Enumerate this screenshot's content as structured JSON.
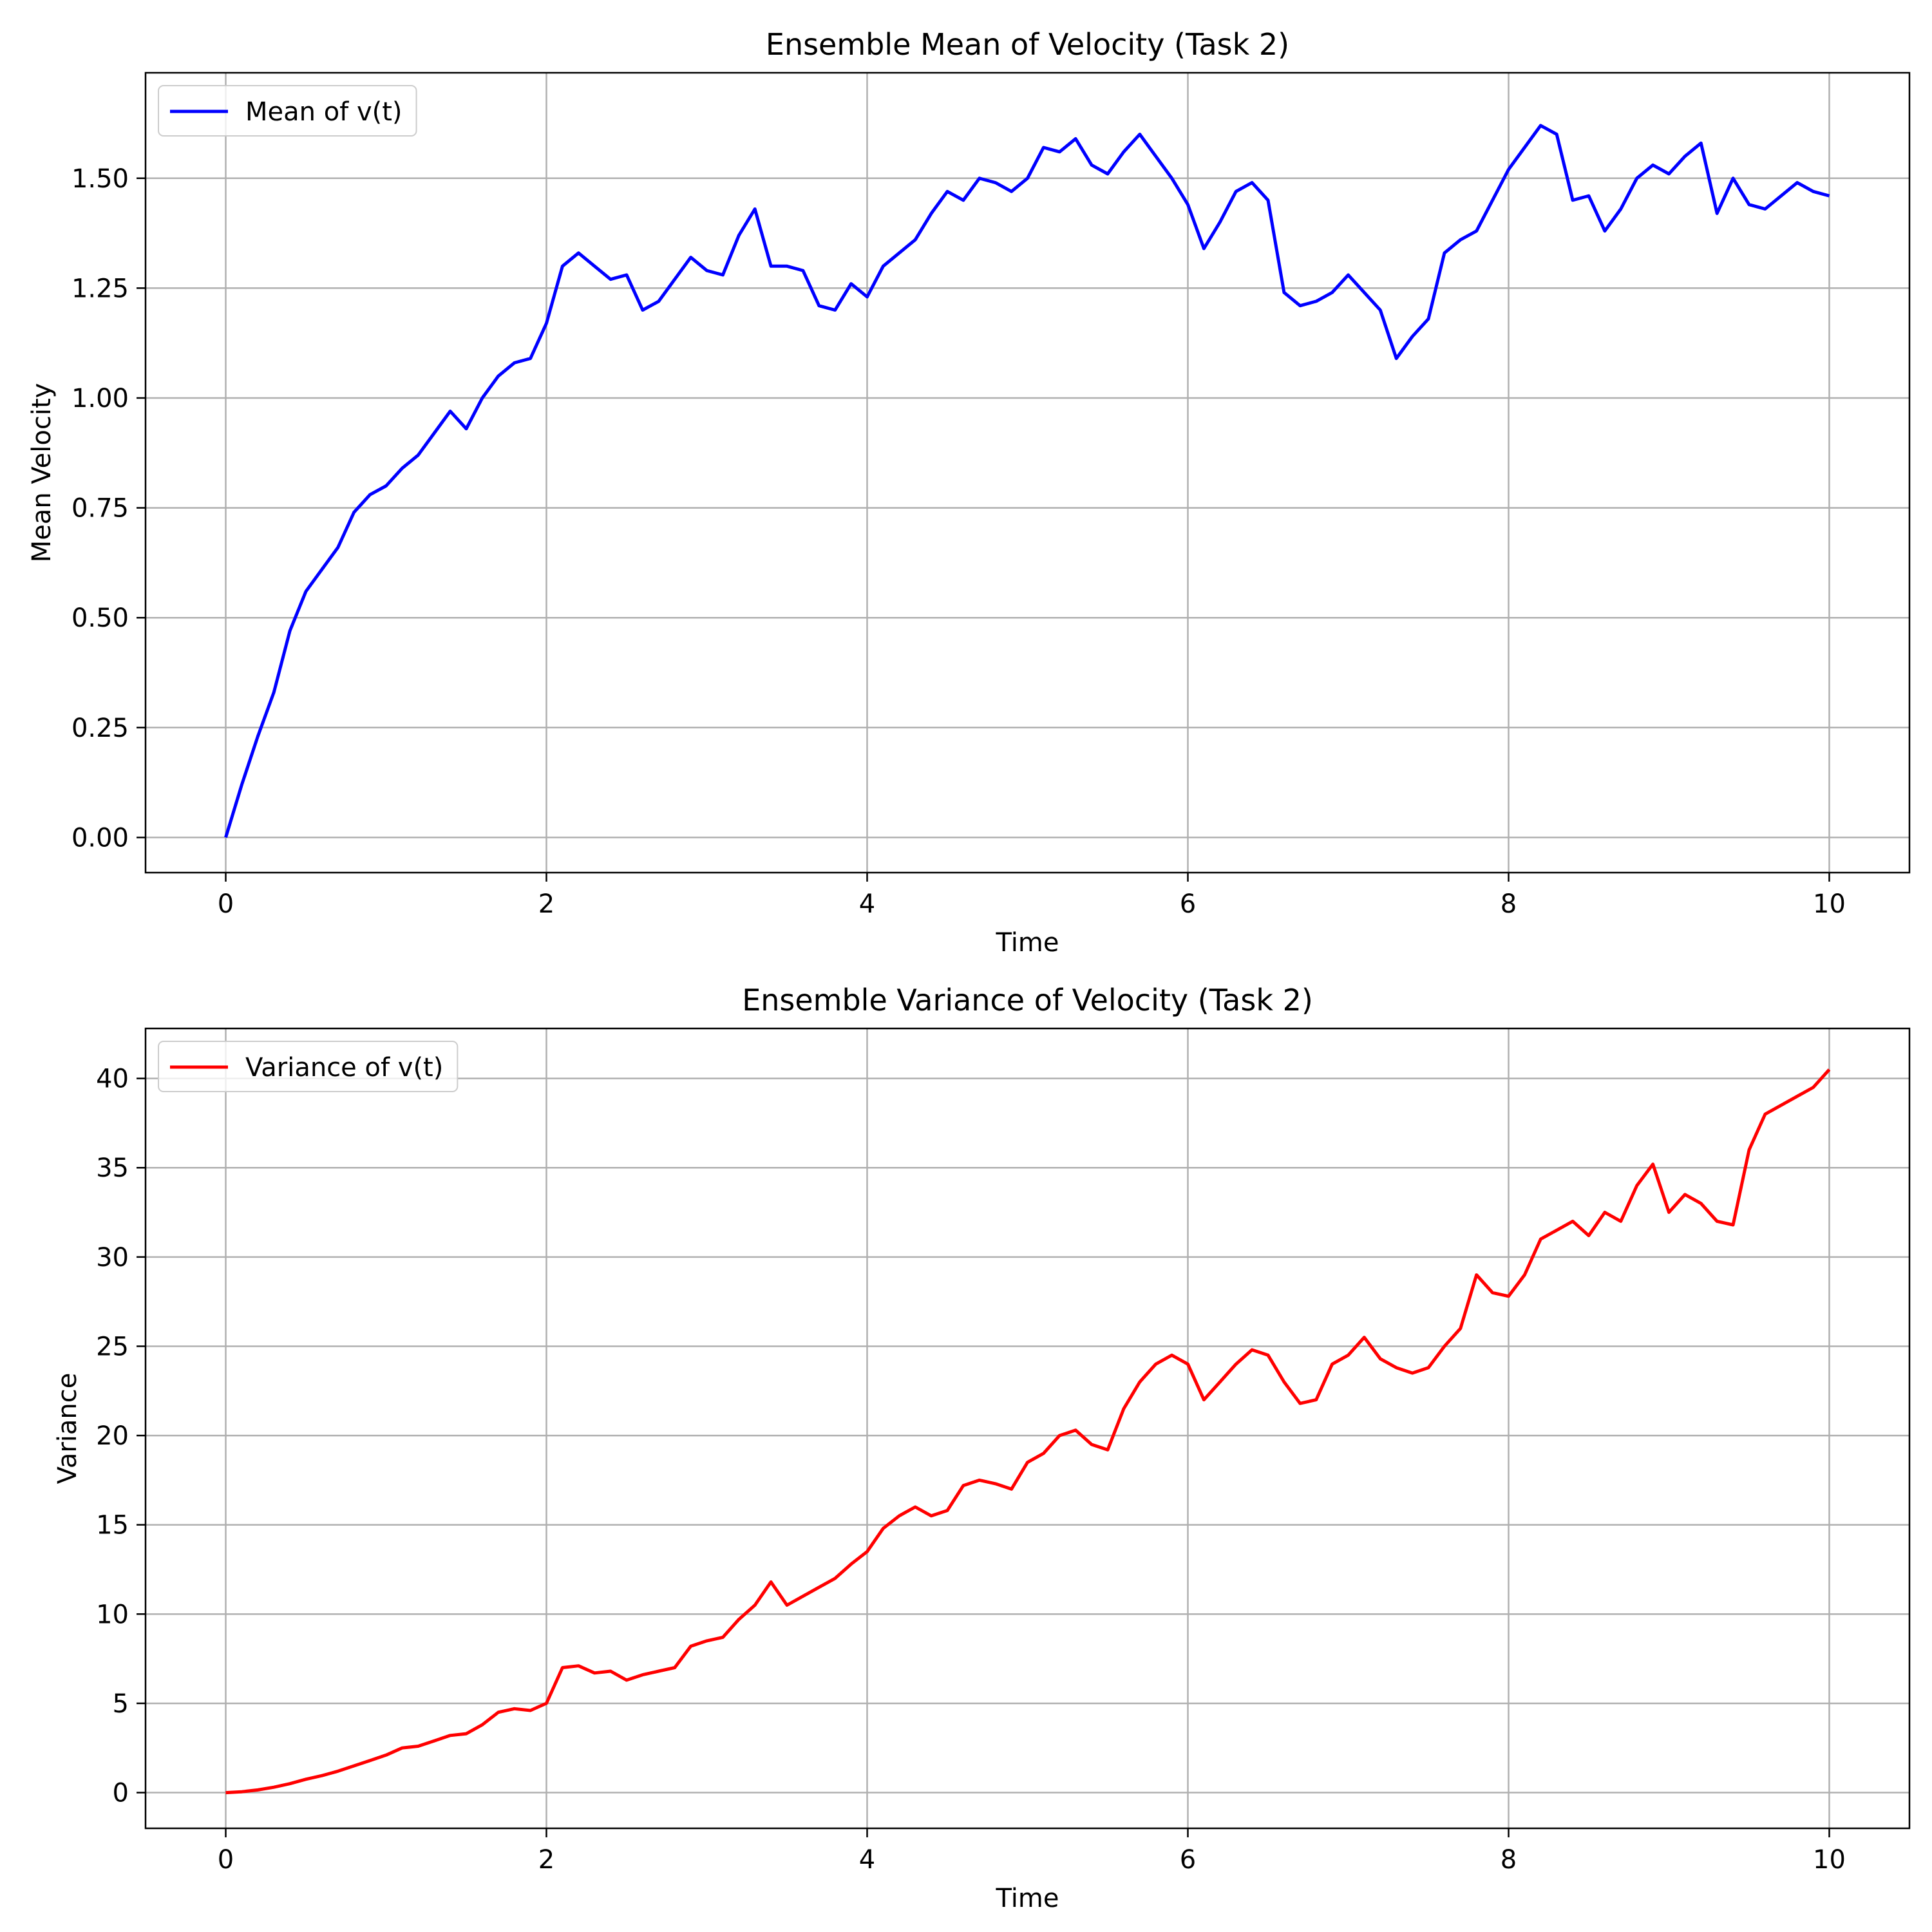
{
  "chart_data": [
    {
      "type": "line",
      "title": "Ensemble Mean of Velocity (Task 2)",
      "xlabel": "Time",
      "ylabel": "Mean Velocity",
      "xlim": [
        -0.5,
        10.5
      ],
      "ylim": [
        -0.08,
        1.74
      ],
      "xticks": [
        0,
        2,
        4,
        6,
        8,
        10
      ],
      "xtick_labels": [
        "0",
        "2",
        "4",
        "6",
        "8",
        "10"
      ],
      "yticks": [
        0,
        0.25,
        0.5,
        0.75,
        1.0,
        1.25,
        1.5
      ],
      "ytick_labels": [
        "0.00",
        "0.25",
        "0.50",
        "0.75",
        "1.00",
        "1.25",
        "1.50"
      ],
      "grid": true,
      "legend": "upper-left",
      "series": [
        {
          "name": "Mean of v(t)",
          "color": "#0000ff",
          "x": [
            0,
            0.1,
            0.2,
            0.3,
            0.4,
            0.5,
            0.6,
            0.7,
            0.8,
            0.9,
            1.0,
            1.1,
            1.2,
            1.3,
            1.4,
            1.5,
            1.6,
            1.7,
            1.8,
            1.9,
            2.0,
            2.1,
            2.2,
            2.3,
            2.4,
            2.5,
            2.6,
            2.7,
            2.8,
            2.9,
            3.0,
            3.1,
            3.2,
            3.3,
            3.4,
            3.5,
            3.6,
            3.7,
            3.8,
            3.9,
            4.0,
            4.1,
            4.2,
            4.3,
            4.4,
            4.5,
            4.6,
            4.7,
            4.8,
            4.9,
            5.0,
            5.1,
            5.2,
            5.3,
            5.4,
            5.5,
            5.6,
            5.7,
            5.8,
            5.9,
            6.0,
            6.1,
            6.2,
            6.3,
            6.4,
            6.5,
            6.6,
            6.7,
            6.8,
            6.9,
            7.0,
            7.1,
            7.2,
            7.3,
            7.4,
            7.5,
            7.6,
            7.7,
            7.8,
            7.9,
            8.0,
            8.1,
            8.2,
            8.3,
            8.4,
            8.5,
            8.6,
            8.7,
            8.8,
            8.9,
            9.0,
            9.1,
            9.2,
            9.3,
            9.4,
            9.5,
            9.6,
            9.7,
            9.8,
            9.9,
            10.0
          ],
          "values": [
            0.0,
            0.12,
            0.23,
            0.33,
            0.47,
            0.56,
            0.61,
            0.66,
            0.74,
            0.78,
            0.8,
            0.84,
            0.87,
            0.92,
            0.97,
            0.93,
            1.0,
            1.05,
            1.08,
            1.09,
            1.17,
            1.3,
            1.33,
            1.3,
            1.27,
            1.28,
            1.2,
            1.22,
            1.27,
            1.32,
            1.29,
            1.28,
            1.37,
            1.43,
            1.3,
            1.3,
            1.29,
            1.21,
            1.2,
            1.26,
            1.23,
            1.3,
            1.33,
            1.36,
            1.42,
            1.47,
            1.45,
            1.5,
            1.49,
            1.47,
            1.5,
            1.57,
            1.56,
            1.59,
            1.53,
            1.51,
            1.56,
            1.6,
            1.55,
            1.5,
            1.44,
            1.34,
            1.4,
            1.47,
            1.49,
            1.45,
            1.24,
            1.21,
            1.22,
            1.24,
            1.28,
            1.24,
            1.2,
            1.09,
            1.14,
            1.18,
            1.33,
            1.36,
            1.38,
            1.45,
            1.52,
            1.57,
            1.62,
            1.6,
            1.45,
            1.46,
            1.38,
            1.43,
            1.5,
            1.53,
            1.51,
            1.55,
            1.58,
            1.42,
            1.5,
            1.44,
            1.43,
            1.46,
            1.49,
            1.47,
            1.46
          ]
        }
      ]
    },
    {
      "type": "line",
      "title": "Ensemble Variance of Velocity (Task 2)",
      "xlabel": "Time",
      "ylabel": "Variance",
      "xlim": [
        -0.5,
        10.5
      ],
      "ylim": [
        -2.0,
        42.8
      ],
      "xticks": [
        0,
        2,
        4,
        6,
        8,
        10
      ],
      "xtick_labels": [
        "0",
        "2",
        "4",
        "6",
        "8",
        "10"
      ],
      "yticks": [
        0,
        5,
        10,
        15,
        20,
        25,
        30,
        35,
        40
      ],
      "ytick_labels": [
        "0",
        "5",
        "10",
        "15",
        "20",
        "25",
        "30",
        "35",
        "40"
      ],
      "grid": true,
      "legend": "upper-left",
      "series": [
        {
          "name": "Variance of v(t)",
          "color": "#ff0000",
          "x": [
            0,
            0.1,
            0.2,
            0.3,
            0.4,
            0.5,
            0.6,
            0.7,
            0.8,
            0.9,
            1.0,
            1.1,
            1.2,
            1.3,
            1.4,
            1.5,
            1.6,
            1.7,
            1.8,
            1.9,
            2.0,
            2.1,
            2.2,
            2.3,
            2.4,
            2.5,
            2.6,
            2.7,
            2.8,
            2.9,
            3.0,
            3.1,
            3.2,
            3.3,
            3.4,
            3.5,
            3.6,
            3.7,
            3.8,
            3.9,
            4.0,
            4.1,
            4.2,
            4.3,
            4.4,
            4.5,
            4.6,
            4.7,
            4.8,
            4.9,
            5.0,
            5.1,
            5.2,
            5.3,
            5.4,
            5.5,
            5.6,
            5.7,
            5.8,
            5.9,
            6.0,
            6.1,
            6.2,
            6.3,
            6.4,
            6.5,
            6.6,
            6.7,
            6.8,
            6.9,
            7.0,
            7.1,
            7.2,
            7.3,
            7.4,
            7.5,
            7.6,
            7.7,
            7.8,
            7.9,
            8.0,
            8.1,
            8.2,
            8.3,
            8.4,
            8.5,
            8.6,
            8.7,
            8.8,
            8.9,
            9.0,
            9.1,
            9.2,
            9.3,
            9.4,
            9.5,
            9.6,
            9.7,
            9.8,
            9.9,
            10.0
          ],
          "values": [
            0.0,
            0.05,
            0.15,
            0.3,
            0.5,
            0.75,
            0.95,
            1.2,
            1.5,
            1.8,
            2.1,
            2.5,
            2.6,
            2.9,
            3.2,
            3.3,
            3.8,
            4.5,
            4.7,
            4.6,
            5.0,
            7.0,
            7.1,
            6.7,
            6.8,
            6.3,
            6.6,
            6.8,
            7.0,
            8.2,
            8.5,
            8.7,
            9.7,
            10.5,
            11.8,
            10.5,
            11.0,
            11.5,
            12.0,
            12.8,
            13.5,
            14.8,
            15.5,
            16.0,
            15.5,
            15.8,
            17.2,
            17.5,
            17.3,
            17.0,
            18.5,
            19.0,
            20.0,
            20.3,
            19.5,
            19.2,
            21.5,
            23.0,
            24.0,
            24.5,
            24.0,
            22.0,
            23.0,
            24.0,
            24.8,
            24.5,
            23.0,
            21.8,
            22.0,
            24.0,
            24.5,
            25.5,
            24.3,
            23.8,
            23.5,
            23.8,
            25.0,
            26.0,
            29.0,
            28.0,
            27.8,
            29.0,
            31.0,
            31.5,
            32.0,
            31.2,
            32.5,
            32.0,
            34.0,
            35.2,
            32.5,
            33.5,
            33.0,
            32.0,
            31.8,
            36.0,
            38.0,
            38.5,
            39.0,
            39.5,
            40.5
          ]
        }
      ]
    }
  ]
}
